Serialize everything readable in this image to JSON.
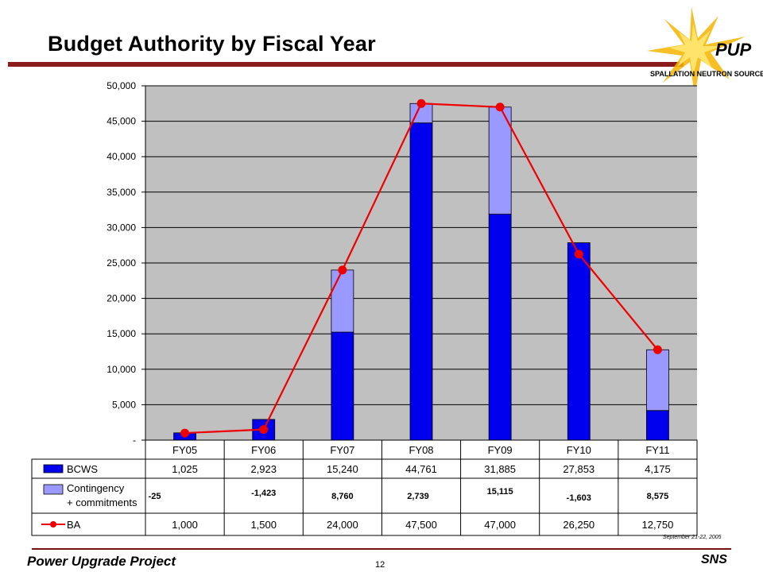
{
  "slide": {
    "title": "Budget Authority by Fiscal Year",
    "footer_left": "Power Upgrade Project",
    "footer_page": "12",
    "footer_right": "SNS",
    "footer_date": "September  21-22,  2005",
    "logo_text_top": "PUP",
    "logo_text_bottom": "SPALLATION NEUTRON SOURCE",
    "colors": {
      "title_rule": "#8a1c1c",
      "plot_bg": "#c0c0c0",
      "bcws": "#0000ee",
      "contingency": "#9999ff",
      "ba_line": "#ee0000"
    }
  },
  "chart_data": {
    "type": "bar",
    "stacked": true,
    "title": "",
    "xlabel": "",
    "ylabel": "",
    "ylim": [
      0,
      50000
    ],
    "y_ticks": [
      "-",
      "5,000",
      "10,000",
      "15,000",
      "20,000",
      "25,000",
      "30,000",
      "35,000",
      "40,000",
      "45,000",
      "50,000"
    ],
    "categories": [
      "FY05",
      "FY06",
      "FY07",
      "FY08",
      "FY09",
      "FY10",
      "FY11"
    ],
    "series": [
      {
        "name": "BCWS",
        "kind": "bar",
        "values": [
          1025,
          2923,
          15240,
          44761,
          31885,
          27853,
          4175
        ],
        "labels": [
          "1,025",
          "2,923",
          "15,240",
          "44,761",
          "31,885",
          "27,853",
          "4,175"
        ]
      },
      {
        "name": "Contingency + commitments",
        "name_lines": [
          "Contingency",
          "+ commitments"
        ],
        "kind": "bar",
        "values": [
          -25,
          -1423,
          8760,
          2739,
          15115,
          -1603,
          8575
        ],
        "labels": [
          "-25",
          "-1,423",
          "8,760",
          "2,739",
          "15,115",
          "-1,603",
          "8,575"
        ]
      },
      {
        "name": "BA",
        "kind": "line",
        "values": [
          1000,
          1500,
          24000,
          47500,
          47000,
          26250,
          12750
        ],
        "labels": [
          "1,000",
          "1,500",
          "24,000",
          "47,500",
          "47,000",
          "26,250",
          "12,750"
        ]
      }
    ],
    "grid": true,
    "legend": "data-table"
  }
}
